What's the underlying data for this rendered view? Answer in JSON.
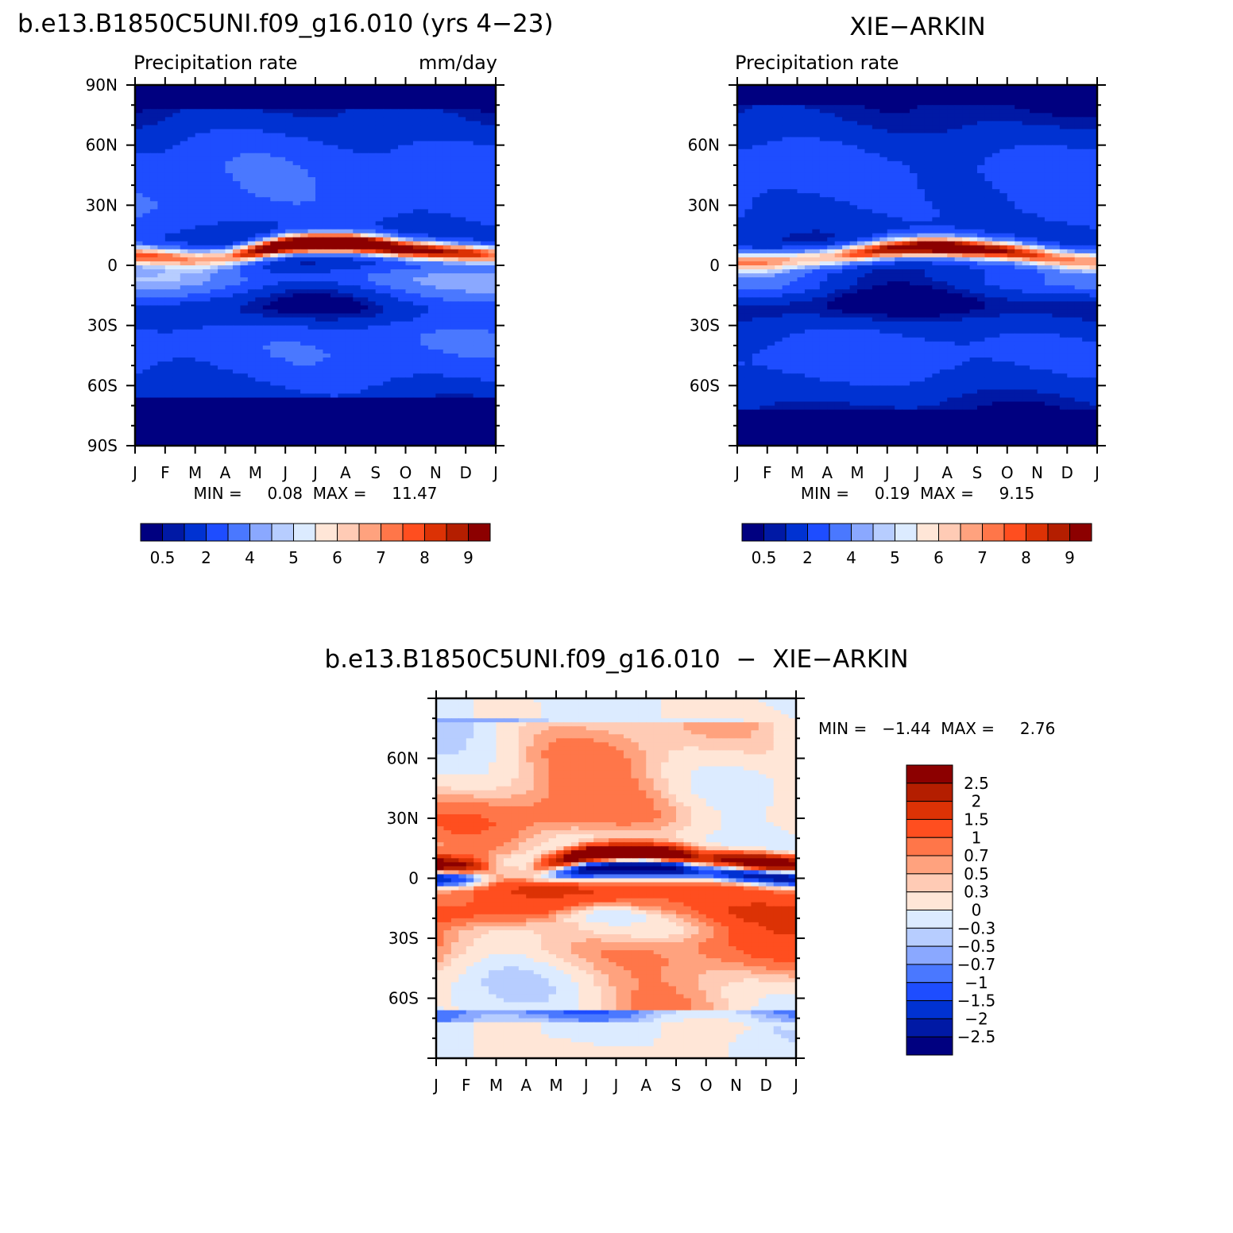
{
  "figure": {
    "panels": [
      {
        "id": "model",
        "title": "b.e13.B1850C5UNI.f09_g16.010 (yrs 4−23)",
        "left_string": "Precipitation  rate",
        "right_string": "mm/day",
        "minmax": "MIN =     0.08  MAX =     11.47"
      },
      {
        "id": "obs",
        "title": "XIE−ARKIN",
        "left_string": "Precipitation  rate",
        "right_string": "",
        "minmax": "MIN =     0.19  MAX =     9.15"
      },
      {
        "id": "diff",
        "title": "b.e13.B1850C5UNI.f09_g16.010  −  XIE−ARKIN",
        "left_string": "",
        "right_string": "",
        "minmax": "MIN =   −1.44  MAX =     2.76"
      }
    ],
    "abs_colorbar": {
      "labels": [
        "0.5",
        "2",
        "4",
        "5",
        "6",
        "7",
        "8",
        "9"
      ],
      "colors": [
        "#000080",
        "#0019a5",
        "#0032d2",
        "#1e4dff",
        "#4a78ff",
        "#8aa8ff",
        "#b7cdff",
        "#dcebff",
        "#ffe6d7",
        "#ffcbb5",
        "#ffa27e",
        "#ff7649",
        "#ff4e1f",
        "#dc3205",
        "#b41e00",
        "#8c0000"
      ]
    },
    "diff_colorbar": {
      "labels": [
        "2.5",
        "2",
        "1.5",
        "1",
        "0.7",
        "0.5",
        "0.3",
        "0",
        "−0.3",
        "−0.5",
        "−0.7",
        "−1",
        "−1.5",
        "−2",
        "−2.5"
      ],
      "colors": [
        "#8c0000",
        "#b41e00",
        "#dc3205",
        "#ff4e1f",
        "#ff7649",
        "#ffa27e",
        "#ffcbb5",
        "#ffe6d7",
        "#dcebff",
        "#b7cdff",
        "#8aa8ff",
        "#4a78ff",
        "#1e4dff",
        "#0032d2",
        "#0019a5",
        "#000080"
      ]
    }
  },
  "chart_data": [
    {
      "type": "heatmap",
      "title": "b.e13.B1850C5UNI.f09_g16.010 (yrs 4−23)",
      "variable": "Precipitation  rate",
      "units": "mm/day",
      "x_tick_labels": [
        "J",
        "F",
        "M",
        "A",
        "M",
        "J",
        "J",
        "A",
        "S",
        "O",
        "N",
        "D",
        "J"
      ],
      "y_tick_labels": [
        "90N",
        "60N",
        "30N",
        "0",
        "30S",
        "60S",
        "90S"
      ],
      "y_ticks": [
        90,
        60,
        30,
        0,
        -30,
        -60,
        -90
      ],
      "xlim": [
        0,
        12
      ],
      "ylim": [
        -90,
        90
      ],
      "min": 0.08,
      "max": 11.47,
      "contour_levels": [
        0.5,
        1,
        2,
        3,
        4,
        4.5,
        5,
        5.5,
        6,
        6.5,
        7,
        7.5,
        8,
        8.5,
        9
      ],
      "colorbar_labels": [
        "0.5",
        "2",
        "4",
        "5",
        "6",
        "7",
        "8",
        "9"
      ],
      "itcz_latitude_by_month": [
        5,
        4,
        3,
        4,
        7,
        10,
        11,
        11,
        10,
        8,
        7,
        6,
        5
      ],
      "itcz_peak_by_month": [
        6.5,
        6,
        5.5,
        6,
        9,
        11,
        11.47,
        11,
        10,
        9,
        8.5,
        8,
        6.5
      ]
    },
    {
      "type": "heatmap",
      "title": "XIE−ARKIN",
      "variable": "Precipitation  rate",
      "x_tick_labels": [
        "J",
        "F",
        "M",
        "A",
        "M",
        "J",
        "J",
        "A",
        "S",
        "O",
        "N",
        "D",
        "J"
      ],
      "y_tick_labels": [
        "60N",
        "30N",
        "0",
        "30S",
        "60S"
      ],
      "y_ticks": [
        60,
        30,
        0,
        -30,
        -60
      ],
      "xlim": [
        0,
        12
      ],
      "ylim": [
        -90,
        90
      ],
      "min": 0.19,
      "max": 9.15,
      "contour_levels": [
        0.5,
        1,
        2,
        3,
        4,
        4.5,
        5,
        5.5,
        6,
        6.5,
        7,
        7.5,
        8,
        8.5,
        9
      ],
      "colorbar_labels": [
        "0.5",
        "2",
        "4",
        "5",
        "6",
        "7",
        "8",
        "9"
      ],
      "itcz_latitude_by_month": [
        2,
        2,
        3,
        4,
        6,
        8,
        9,
        9,
        8,
        7,
        5,
        3,
        2
      ],
      "itcz_peak_by_month": [
        5.5,
        5.5,
        5.5,
        6,
        7.5,
        8.5,
        9,
        9.15,
        8.5,
        8,
        7,
        6,
        5.5
      ]
    },
    {
      "type": "heatmap",
      "title": "b.e13.B1850C5UNI.f09_g16.010  −  XIE−ARKIN",
      "x_tick_labels": [
        "J",
        "F",
        "M",
        "A",
        "M",
        "J",
        "J",
        "A",
        "S",
        "O",
        "N",
        "D",
        "J"
      ],
      "y_tick_labels": [
        "60N",
        "30N",
        "0",
        "30S",
        "60S"
      ],
      "y_ticks": [
        60,
        30,
        0,
        -30,
        -60
      ],
      "xlim": [
        0,
        12
      ],
      "ylim": [
        -90,
        90
      ],
      "min": -1.44,
      "max": 2.76,
      "contour_levels": [
        -2.5,
        -2,
        -1.5,
        -1,
        -0.7,
        -0.5,
        -0.3,
        0,
        0.3,
        0.5,
        0.7,
        1,
        1.5,
        2,
        2.5
      ],
      "colorbar_labels": [
        "2.5",
        "2",
        "1.5",
        "1",
        "0.7",
        "0.5",
        "0.3",
        "0",
        "−0.3",
        "−0.5",
        "−0.7",
        "−1",
        "−1.5",
        "−2",
        "−2.5"
      ]
    }
  ]
}
